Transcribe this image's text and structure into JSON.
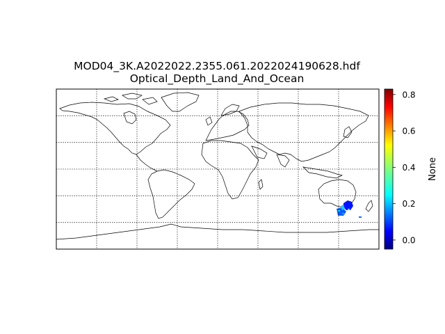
{
  "title": {
    "line1": "MOD04_3K.A2022022.2355.061.2022024190628.hdf",
    "line2": "Optical_Depth_Land_And_Ocean"
  },
  "colorbar": {
    "label": "None",
    "ticks": [
      "0.8",
      "0.6",
      "0.4",
      "0.2",
      "0.0"
    ],
    "tick_values": [
      0.8,
      0.6,
      0.4,
      0.2,
      0.0
    ],
    "range": [
      -0.05,
      0.83
    ],
    "colormap": [
      "#00007f",
      "#0000ff",
      "#007fff",
      "#00ffff",
      "#7fff7f",
      "#ffff00",
      "#ff7f00",
      "#ff0000",
      "#7f0000"
    ]
  },
  "map": {
    "projection": "cylindrical",
    "gridline_style": "dotted",
    "meridian_count": 7,
    "parallel_count": 5,
    "data_region": "Southeast Australia / Tasman Sea"
  }
}
